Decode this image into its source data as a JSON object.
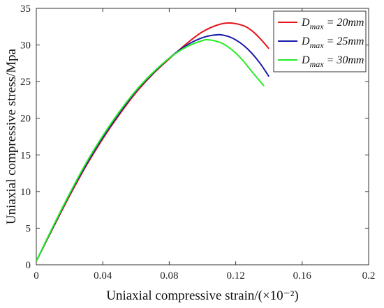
{
  "chart_data": {
    "type": "line",
    "xlabel": "Uniaxial compressive strain/(×10⁻²)",
    "ylabel": "Uniaxial compressive stress/Mpa",
    "xlim": [
      0,
      0.2
    ],
    "ylim": [
      0,
      35
    ],
    "xticks": [
      "0",
      "0.04",
      "0.08",
      "0.12",
      "0.16",
      "0.2"
    ],
    "yticks": [
      "0",
      "5",
      "10",
      "15",
      "20",
      "25",
      "30",
      "35"
    ],
    "grid": false,
    "legend_position": "top-right",
    "series": [
      {
        "name": "Dmax = 20mm",
        "label": {
          "base": "D",
          "sub": "max",
          "rest": " = 20mm"
        },
        "color": "#e8131b",
        "x": [
          0,
          0.01,
          0.02,
          0.03,
          0.04,
          0.05,
          0.06,
          0.07,
          0.08,
          0.09,
          0.1,
          0.11,
          0.117,
          0.125,
          0.13,
          0.135,
          0.14
        ],
        "y": [
          0.5,
          5.0,
          9.4,
          13.5,
          17.2,
          20.5,
          23.5,
          26.0,
          28.1,
          30.1,
          31.8,
          32.8,
          33.0,
          32.6,
          31.9,
          30.8,
          29.5
        ]
      },
      {
        "name": "Dmax = 25mm",
        "label": {
          "base": "D",
          "sub": "max",
          "rest": " = 25mm"
        },
        "color": "#1a1aa8",
        "x": [
          0,
          0.01,
          0.02,
          0.03,
          0.04,
          0.05,
          0.06,
          0.07,
          0.08,
          0.09,
          0.1,
          0.109,
          0.115,
          0.12,
          0.125,
          0.13,
          0.135,
          0.14
        ],
        "y": [
          0.5,
          5.1,
          9.6,
          13.7,
          17.4,
          20.7,
          23.7,
          26.1,
          28.2,
          29.9,
          31.0,
          31.4,
          31.2,
          30.7,
          29.9,
          28.8,
          27.4,
          25.7
        ]
      },
      {
        "name": "Dmax = 30mm",
        "label": {
          "base": "D",
          "sub": "max",
          "rest": " = 30mm"
        },
        "color": "#22ee22",
        "x": [
          0,
          0.01,
          0.02,
          0.03,
          0.04,
          0.05,
          0.06,
          0.07,
          0.08,
          0.09,
          0.1,
          0.104,
          0.11,
          0.115,
          0.12,
          0.125,
          0.13,
          0.137
        ],
        "y": [
          0.5,
          5.2,
          9.7,
          13.9,
          17.6,
          20.9,
          23.8,
          26.2,
          28.2,
          29.7,
          30.6,
          30.7,
          30.4,
          29.8,
          28.9,
          27.7,
          26.3,
          24.4
        ]
      }
    ]
  }
}
